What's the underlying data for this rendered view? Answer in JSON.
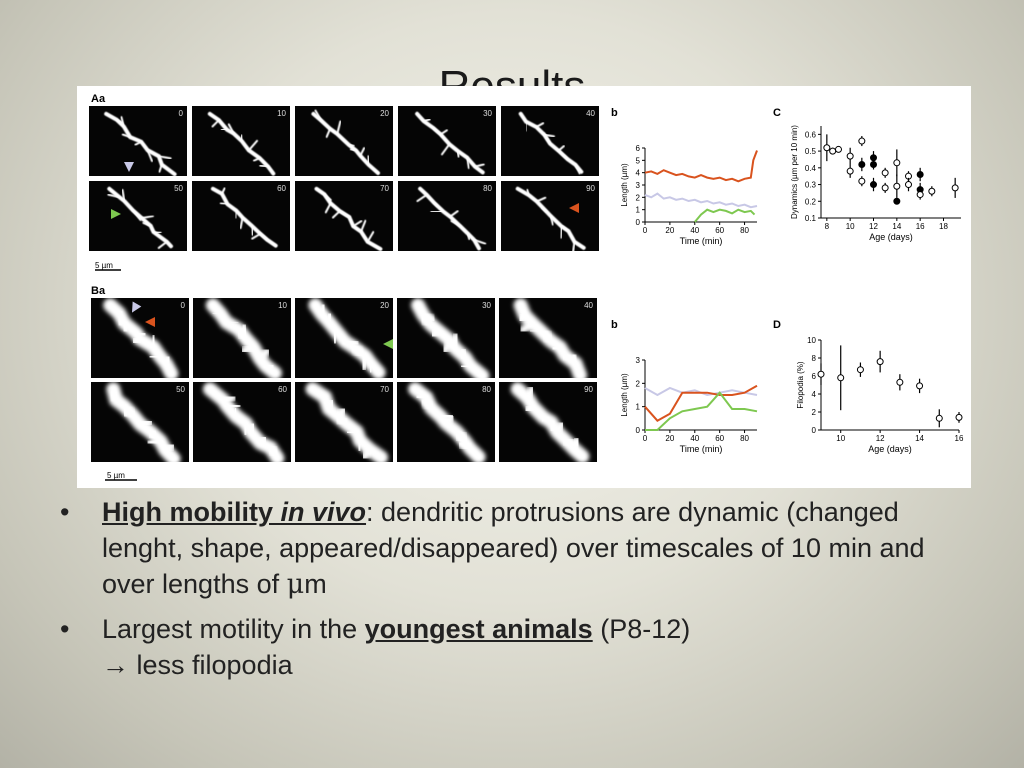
{
  "slide": {
    "title": "Results",
    "bullets": [
      {
        "lead_1": "High mobility ",
        "lead_italic": "in vivo",
        "rest_1": ": dendritic protrusions are dynamic (changed lenght, shape, appeared/disappeared) over timescales of 10 min and over lengths of ",
        "mu": "μ",
        "rest_2": "m"
      },
      {
        "pre": "Largest motility in the ",
        "emph": "youngest animals",
        "post": " (P8-12)",
        "line2": "→ less filopodia"
      }
    ]
  },
  "figure": {
    "panel_labels": {
      "Aa": "Aa",
      "Ab": "b",
      "C": "C",
      "Ba": "Ba",
      "Bb": "b",
      "D": "D"
    },
    "scale_bar": "5 µm",
    "time_labels_A": [
      "0",
      "10",
      "20",
      "30",
      "40",
      "50",
      "60",
      "70",
      "80",
      "90"
    ],
    "time_labels_B": [
      "0",
      "10",
      "20",
      "30",
      "40",
      "50",
      "60",
      "70",
      "80",
      "90"
    ],
    "colors": {
      "orange": "#d9531e",
      "green": "#7ec850",
      "lavender": "#c8c8e6",
      "black": "#111111"
    }
  },
  "chart_data": [
    {
      "type": "line",
      "panel": "Ab",
      "xlabel": "Time (min)",
      "ylabel": "Length (µm)",
      "xlim": [
        0,
        90
      ],
      "ylim": [
        0,
        6
      ],
      "xticks": [
        "0",
        "20",
        "40",
        "60",
        "80"
      ],
      "yticks": [
        "0",
        "1",
        "2",
        "3",
        "4",
        "5",
        "6"
      ],
      "series": [
        {
          "color": "#d9531e",
          "x": [
            0,
            5,
            10,
            15,
            20,
            25,
            30,
            35,
            40,
            45,
            50,
            55,
            60,
            65,
            70,
            75,
            80,
            85,
            87,
            90
          ],
          "y": [
            4.0,
            4.1,
            3.9,
            4.2,
            4.0,
            3.8,
            3.9,
            3.7,
            3.6,
            3.8,
            3.6,
            3.5,
            3.6,
            3.4,
            3.5,
            3.3,
            3.5,
            3.6,
            5.0,
            5.8
          ]
        },
        {
          "color": "#c8c8e6",
          "x": [
            0,
            5,
            10,
            15,
            20,
            25,
            30,
            35,
            40,
            45,
            50,
            55,
            60,
            65,
            70,
            75,
            80,
            85,
            90
          ],
          "y": [
            2.2,
            2.0,
            2.3,
            1.9,
            2.0,
            1.8,
            1.9,
            1.7,
            1.8,
            1.6,
            1.7,
            1.5,
            1.6,
            1.4,
            1.5,
            1.3,
            1.4,
            1.2,
            1.3
          ]
        },
        {
          "color": "#7ec850",
          "x": [
            40,
            45,
            50,
            55,
            60,
            65,
            70,
            75,
            80,
            85,
            88
          ],
          "y": [
            0,
            0.6,
            1.0,
            0.8,
            1.0,
            0.9,
            0.7,
            1.0,
            0.8,
            0.9,
            0.6
          ]
        }
      ]
    },
    {
      "type": "scatter",
      "panel": "C",
      "xlabel": "Age (days)",
      "ylabel": "Dynamics (µm per 10 min)",
      "xlim": [
        7.5,
        19.5
      ],
      "ylim": [
        0.1,
        0.65
      ],
      "xticks": [
        "8",
        "10",
        "12",
        "14",
        "16",
        "18"
      ],
      "yticks": [
        "0.1",
        "0.2",
        "0.3",
        "0.4",
        "0.5",
        "0.6"
      ],
      "points": [
        {
          "x": 8,
          "y": 0.52,
          "filled": false,
          "err": 0.08
        },
        {
          "x": 8.5,
          "y": 0.5,
          "filled": false,
          "err": 0.02
        },
        {
          "x": 9,
          "y": 0.51,
          "filled": false,
          "err": 0.01
        },
        {
          "x": 10,
          "y": 0.47,
          "filled": false,
          "err": 0.05
        },
        {
          "x": 10,
          "y": 0.38,
          "filled": false,
          "err": 0.04
        },
        {
          "x": 11,
          "y": 0.56,
          "filled": false,
          "err": 0.03
        },
        {
          "x": 11,
          "y": 0.42,
          "filled": true,
          "err": 0.04
        },
        {
          "x": 11,
          "y": 0.32,
          "filled": false,
          "err": 0.03
        },
        {
          "x": 12,
          "y": 0.46,
          "filled": true,
          "err": 0.04
        },
        {
          "x": 12,
          "y": 0.42,
          "filled": true,
          "err": 0.03
        },
        {
          "x": 12,
          "y": 0.3,
          "filled": true,
          "err": 0.04
        },
        {
          "x": 13,
          "y": 0.37,
          "filled": false,
          "err": 0.03
        },
        {
          "x": 13,
          "y": 0.28,
          "filled": false,
          "err": 0.03
        },
        {
          "x": 14,
          "y": 0.43,
          "filled": false,
          "err": 0.08
        },
        {
          "x": 14,
          "y": 0.29,
          "filled": false,
          "err": 0.07
        },
        {
          "x": 14,
          "y": 0.2,
          "filled": true,
          "err": 0.0
        },
        {
          "x": 15,
          "y": 0.35,
          "filled": false,
          "err": 0.03
        },
        {
          "x": 15,
          "y": 0.3,
          "filled": false,
          "err": 0.04
        },
        {
          "x": 16,
          "y": 0.36,
          "filled": true,
          "err": 0.04
        },
        {
          "x": 16,
          "y": 0.27,
          "filled": true,
          "err": 0.04
        },
        {
          "x": 16,
          "y": 0.24,
          "filled": false,
          "err": 0.03
        },
        {
          "x": 17,
          "y": 0.26,
          "filled": false,
          "err": 0.03
        },
        {
          "x": 19,
          "y": 0.28,
          "filled": false,
          "err": 0.06
        }
      ]
    },
    {
      "type": "line",
      "panel": "Bb",
      "xlabel": "Time (min)",
      "ylabel": "Length (µm)",
      "xlim": [
        0,
        90
      ],
      "ylim": [
        0,
        3
      ],
      "xticks": [
        "0",
        "20",
        "40",
        "60",
        "80"
      ],
      "yticks": [
        "0",
        "1",
        "2",
        "3"
      ],
      "series": [
        {
          "color": "#c8c8e6",
          "x": [
            0,
            10,
            20,
            30,
            40,
            50,
            60,
            70,
            80,
            90
          ],
          "y": [
            1.8,
            1.5,
            1.8,
            1.6,
            1.7,
            1.5,
            1.6,
            1.7,
            1.6,
            1.5
          ]
        },
        {
          "color": "#d9531e",
          "x": [
            0,
            10,
            20,
            30,
            40,
            50,
            60,
            70,
            80,
            90
          ],
          "y": [
            1.0,
            0.4,
            0.7,
            1.6,
            1.6,
            1.6,
            1.5,
            1.5,
            1.6,
            1.9
          ]
        },
        {
          "color": "#7ec850",
          "x": [
            0,
            10,
            20,
            30,
            40,
            50,
            60,
            70,
            80,
            90
          ],
          "y": [
            0.0,
            0.0,
            0.5,
            0.8,
            0.9,
            1.0,
            1.6,
            0.9,
            0.9,
            0.8
          ]
        }
      ]
    },
    {
      "type": "scatter",
      "panel": "D",
      "xlabel": "Age (days)",
      "ylabel": "Filopodia (%)",
      "xlim": [
        9,
        16
      ],
      "ylim": [
        0,
        10
      ],
      "xticks": [
        "10",
        "12",
        "14",
        "16"
      ],
      "yticks": [
        "0",
        "2",
        "4",
        "6",
        "8",
        "10"
      ],
      "points": [
        {
          "x": 9,
          "y": 6.2,
          "filled": false,
          "err": 1.2
        },
        {
          "x": 10,
          "y": 5.8,
          "filled": false,
          "err": 3.6
        },
        {
          "x": 11,
          "y": 6.7,
          "filled": false,
          "err": 0.8
        },
        {
          "x": 12,
          "y": 7.6,
          "filled": false,
          "err": 1.2
        },
        {
          "x": 13,
          "y": 5.3,
          "filled": false,
          "err": 0.9
        },
        {
          "x": 14,
          "y": 4.9,
          "filled": false,
          "err": 0.8
        },
        {
          "x": 15,
          "y": 1.3,
          "filled": false,
          "err": 1.0
        },
        {
          "x": 16,
          "y": 1.4,
          "filled": false,
          "err": 0.6
        }
      ]
    }
  ]
}
